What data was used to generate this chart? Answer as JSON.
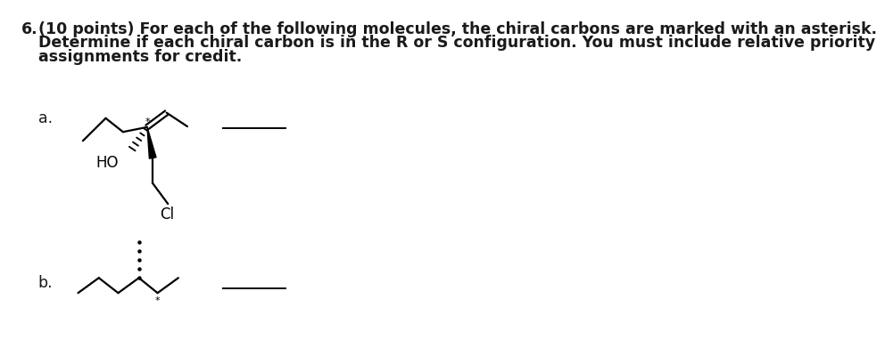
{
  "bg_color": "#ffffff",
  "text_color": "#1a1a1a",
  "font_size_title": 12.5,
  "line1": "(10 points) For each of the following molecules, the chiral carbons are marked with an asterisk.",
  "line2": "Determine if each chiral carbon is in the R or S configuration. You must include relative priority",
  "line3": "assignments for credit.",
  "label_a": "a.",
  "label_b": "b.",
  "number": "6.",
  "HO_label": "HO",
  "Cl_label": "Cl"
}
